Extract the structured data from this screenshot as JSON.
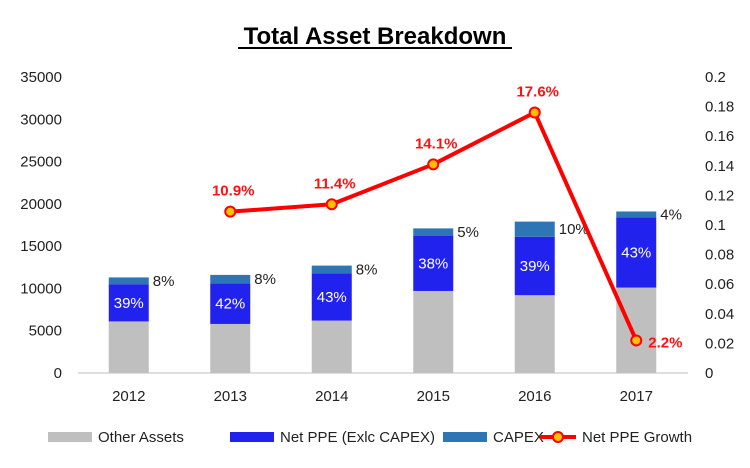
{
  "chart_data": {
    "type": "bar",
    "title": "Total Asset Breakdown",
    "categories": [
      "2012",
      "2013",
      "2014",
      "2015",
      "2016",
      "2017"
    ],
    "series": [
      {
        "name": "Other Assets",
        "kind": "stacked-bar",
        "color": "#bfbfbf",
        "values": [
          6100,
          5800,
          6200,
          9700,
          9200,
          10100
        ]
      },
      {
        "name": "Net PPE (Exlc CAPEX)",
        "kind": "stacked-bar",
        "color": "#2222ee",
        "values": [
          4400,
          4800,
          5600,
          6500,
          6900,
          8300
        ],
        "labels": [
          "39%",
          "42%",
          "43%",
          "38%",
          "39%",
          "43%"
        ]
      },
      {
        "name": "CAPEX",
        "kind": "stacked-bar",
        "color": "#2e75b6",
        "values": [
          800,
          1000,
          900,
          900,
          1800,
          700
        ],
        "labels": [
          "8%",
          "8%",
          "8%",
          "5%",
          "10%",
          "4%"
        ]
      },
      {
        "name": "Net PPE Growth",
        "kind": "line",
        "axis": "right",
        "color": "#ff0000",
        "values": [
          null,
          0.109,
          0.114,
          0.141,
          0.176,
          0.022
        ],
        "labels": [
          "",
          "10.9%",
          "11.4%",
          "14.1%",
          "17.6%",
          "2.2%"
        ]
      }
    ],
    "y_left": {
      "min": 0,
      "max": 35000,
      "step": 5000,
      "ticks": [
        "0",
        "5000",
        "10000",
        "15000",
        "20000",
        "25000",
        "30000",
        "35000"
      ]
    },
    "y_right": {
      "min": 0,
      "max": 0.2,
      "step": 0.02,
      "ticks": [
        "0",
        "0.02",
        "0.04",
        "0.06",
        "0.08",
        "0.1",
        "0.12",
        "0.14",
        "0.16",
        "0.18",
        "0.2"
      ]
    },
    "legend": {
      "position": "bottom",
      "items": [
        {
          "label": "Other Assets",
          "swatch": "box",
          "color": "#bfbfbf"
        },
        {
          "label": "Net PPE (Exlc CAPEX)",
          "swatch": "box",
          "color": "#2222ee"
        },
        {
          "label": "CAPEX",
          "swatch": "box",
          "color": "#2e75b6"
        },
        {
          "label": "Net PPE Growth",
          "swatch": "line-marker",
          "color": "#ff0000"
        }
      ]
    },
    "grid": false
  }
}
